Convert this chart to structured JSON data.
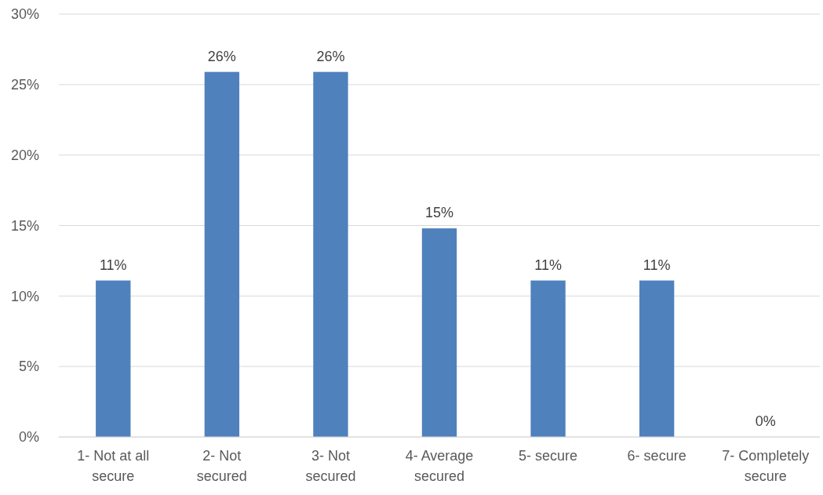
{
  "chart_data": {
    "type": "bar",
    "categories": [
      "1- Not at all secure",
      "2- Not secured",
      "3- Not secured",
      "4- Average secured",
      "5- secure",
      "6- secure",
      "7- Completely secure"
    ],
    "values": [
      11.1,
      25.9,
      25.9,
      14.8,
      11.1,
      11.1,
      0
    ],
    "value_labels": [
      "11%",
      "26%",
      "26%",
      "15%",
      "11%",
      "11%",
      "0%"
    ],
    "color": "#4f81bd",
    "ylim": [
      0,
      30
    ],
    "yticks": [
      {
        "value": 0,
        "label": "0%"
      },
      {
        "value": 5,
        "label": "5%"
      },
      {
        "value": 10,
        "label": "10%"
      },
      {
        "value": 15,
        "label": "15%"
      },
      {
        "value": 20,
        "label": "20%"
      },
      {
        "value": 25,
        "label": "25%"
      },
      {
        "value": 30,
        "label": "30%"
      }
    ],
    "grid": "y"
  }
}
